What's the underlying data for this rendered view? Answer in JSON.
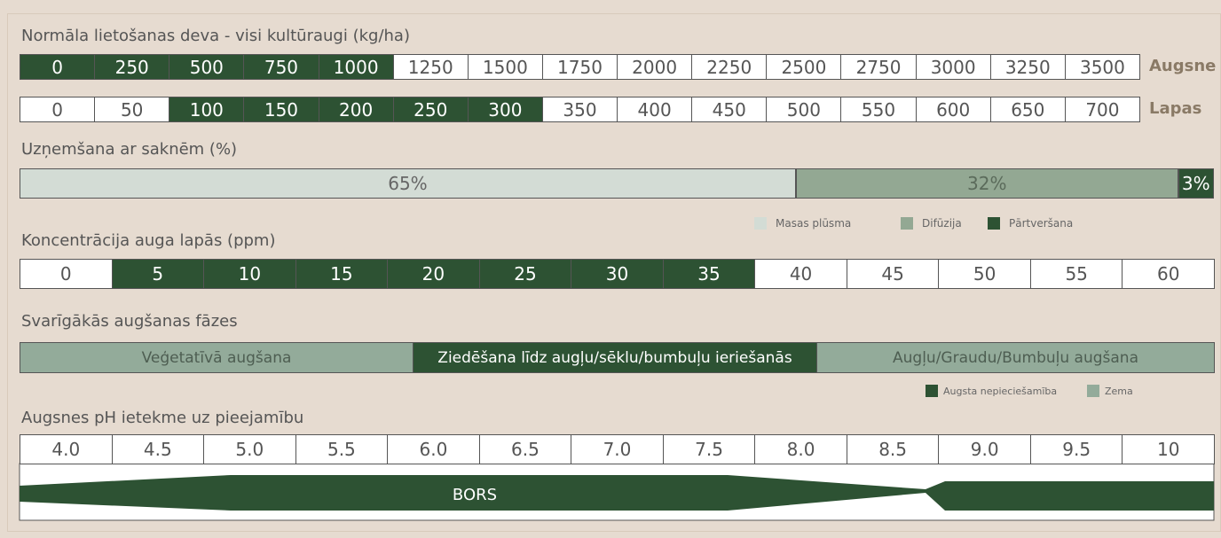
{
  "dose": {
    "title": "Normāla lietošanas deva - visi kultūraugi (kg/ha)",
    "rows": [
      {
        "label": "Augsne",
        "cells": [
          {
            "text": "0",
            "high": true
          },
          {
            "text": "250",
            "high": true
          },
          {
            "text": "500",
            "high": true
          },
          {
            "text": "750",
            "high": true
          },
          {
            "text": "1000",
            "high": true
          },
          {
            "text": "1250",
            "high": false
          },
          {
            "text": "1500",
            "high": false
          },
          {
            "text": "1750",
            "high": false
          },
          {
            "text": "2000",
            "high": false
          },
          {
            "text": "2250",
            "high": false
          },
          {
            "text": "2500",
            "high": false
          },
          {
            "text": "2750",
            "high": false
          },
          {
            "text": "3000",
            "high": false
          },
          {
            "text": "3250",
            "high": false
          },
          {
            "text": "3500",
            "high": false
          }
        ]
      },
      {
        "label": "Lapas",
        "cells": [
          {
            "text": "0",
            "high": false
          },
          {
            "text": "50",
            "high": false
          },
          {
            "text": "100",
            "high": true
          },
          {
            "text": "150",
            "high": true
          },
          {
            "text": "200",
            "high": true
          },
          {
            "text": "250",
            "high": true
          },
          {
            "text": "300",
            "high": true
          },
          {
            "text": "350",
            "high": false
          },
          {
            "text": "400",
            "high": false
          },
          {
            "text": "450",
            "high": false
          },
          {
            "text": "500",
            "high": false
          },
          {
            "text": "550",
            "high": false
          },
          {
            "text": "600",
            "high": false
          },
          {
            "text": "650",
            "high": false
          },
          {
            "text": "700",
            "high": false
          }
        ]
      }
    ]
  },
  "uptake": {
    "title": "Uzņemšana ar saknēm (%)",
    "segments": [
      {
        "name": "Masas plūsma",
        "value": 65,
        "label": "65%",
        "color": "#d3dcd5",
        "text_color": "#666666"
      },
      {
        "name": "Difūzija",
        "value": 32,
        "label": "32%",
        "color": "#93a893",
        "text_color": "#5b6b5b"
      },
      {
        "name": "Pārtveršana",
        "value": 3,
        "label": "3%",
        "color": "#2d5233",
        "text_color": "#ffffff"
      }
    ]
  },
  "concentration": {
    "title": "Koncentrācija auga lapās (ppm)",
    "cells": [
      {
        "text": "0",
        "high": false
      },
      {
        "text": "5",
        "high": true
      },
      {
        "text": "10",
        "high": true
      },
      {
        "text": "15",
        "high": true
      },
      {
        "text": "20",
        "high": true
      },
      {
        "text": "25",
        "high": true
      },
      {
        "text": "30",
        "high": true
      },
      {
        "text": "35",
        "high": true
      },
      {
        "text": "40",
        "high": false
      },
      {
        "text": "45",
        "high": false
      },
      {
        "text": "50",
        "high": false
      },
      {
        "text": "55",
        "high": false
      },
      {
        "text": "60",
        "high": false
      }
    ]
  },
  "phases": {
    "title": "Svarīgākās augšanas fāzes",
    "items": [
      {
        "text": "Veģetatīvā augšana",
        "high": false
      },
      {
        "text": "Ziedēšana līdz augļu/sēklu/bumbuļu ieriešanās",
        "high": true
      },
      {
        "text": "Augļu/Graudu/Bumbuļu augšana",
        "high": false
      }
    ],
    "legend": {
      "high": "Augsta nepieciešamība",
      "low": "Zema"
    }
  },
  "ph": {
    "title": "Augsnes pH ietekme uz pieejamību",
    "cells": [
      "4.0",
      "4.5",
      "5.0",
      "5.5",
      "6.0",
      "6.5",
      "7.0",
      "7.5",
      "8.0",
      "8.5",
      "9.0",
      "9.5",
      "10"
    ],
    "band": "BORS"
  }
}
